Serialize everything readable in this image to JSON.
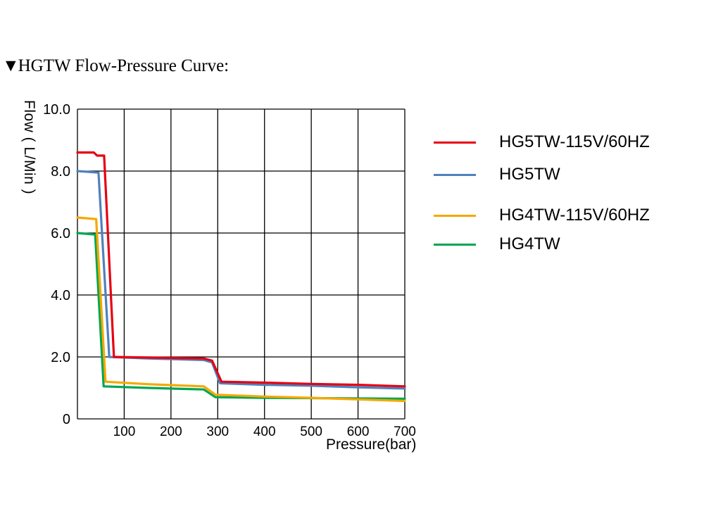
{
  "page": {
    "title_marker": "▼",
    "title": "HGTW Flow-Pressure Curve:"
  },
  "chart_data": {
    "type": "line",
    "title": "HGTW Flow-Pressure Curve",
    "xlabel": "Pressure(bar)",
    "ylabel": "Flow ( L/Min )",
    "xlim": [
      0,
      700
    ],
    "ylim": [
      0,
      10
    ],
    "grid": true,
    "legend_position": "right",
    "x_ticks": [
      0,
      100,
      200,
      300,
      400,
      500,
      600,
      700
    ],
    "x_tick_labels": [
      "",
      "100",
      "200",
      "300",
      "400",
      "500",
      "600",
      "700"
    ],
    "y_ticks": [
      0,
      2,
      4,
      6,
      8,
      10
    ],
    "y_tick_labels": [
      "0",
      "2.0",
      "4.0",
      "6.0",
      "8.0",
      "10.0"
    ],
    "series": [
      {
        "name": "HG5TW-115V/60HZ",
        "color": "#e60012",
        "points": [
          [
            0,
            8.6
          ],
          [
            35,
            8.6
          ],
          [
            42,
            8.5
          ],
          [
            57,
            8.5
          ],
          [
            78,
            2.0
          ],
          [
            150,
            1.98
          ],
          [
            270,
            1.95
          ],
          [
            288,
            1.88
          ],
          [
            308,
            1.2
          ],
          [
            400,
            1.17
          ],
          [
            500,
            1.13
          ],
          [
            600,
            1.1
          ],
          [
            700,
            1.05
          ]
        ]
      },
      {
        "name": "HG5TW",
        "color": "#4f81bd",
        "points": [
          [
            0,
            8.0
          ],
          [
            45,
            7.95
          ],
          [
            68,
            2.0
          ],
          [
            150,
            1.95
          ],
          [
            270,
            1.9
          ],
          [
            288,
            1.82
          ],
          [
            305,
            1.15
          ],
          [
            400,
            1.1
          ],
          [
            500,
            1.07
          ],
          [
            600,
            1.02
          ],
          [
            700,
            0.98
          ]
        ]
      },
      {
        "name": "HG4TW-115V/60HZ",
        "color": "#f5a800",
        "points": [
          [
            0,
            6.5
          ],
          [
            40,
            6.45
          ],
          [
            60,
            1.2
          ],
          [
            150,
            1.12
          ],
          [
            270,
            1.05
          ],
          [
            295,
            0.78
          ],
          [
            400,
            0.72
          ],
          [
            500,
            0.68
          ],
          [
            600,
            0.63
          ],
          [
            700,
            0.58
          ]
        ]
      },
      {
        "name": "HG4TW",
        "color": "#00a651",
        "points": [
          [
            0,
            6.0
          ],
          [
            38,
            5.95
          ],
          [
            56,
            1.05
          ],
          [
            150,
            1.0
          ],
          [
            270,
            0.95
          ],
          [
            295,
            0.7
          ],
          [
            400,
            0.68
          ],
          [
            500,
            0.67
          ],
          [
            600,
            0.66
          ],
          [
            700,
            0.65
          ]
        ]
      }
    ]
  },
  "legend": [
    {
      "label": "HG5TW-115V/60HZ",
      "color": "#e60012"
    },
    {
      "label": "HG5TW",
      "color": "#4f81bd"
    },
    {
      "label": "HG4TW-115V/60HZ",
      "color": "#f5a800"
    },
    {
      "label": "HG4TW",
      "color": "#00a651"
    }
  ]
}
